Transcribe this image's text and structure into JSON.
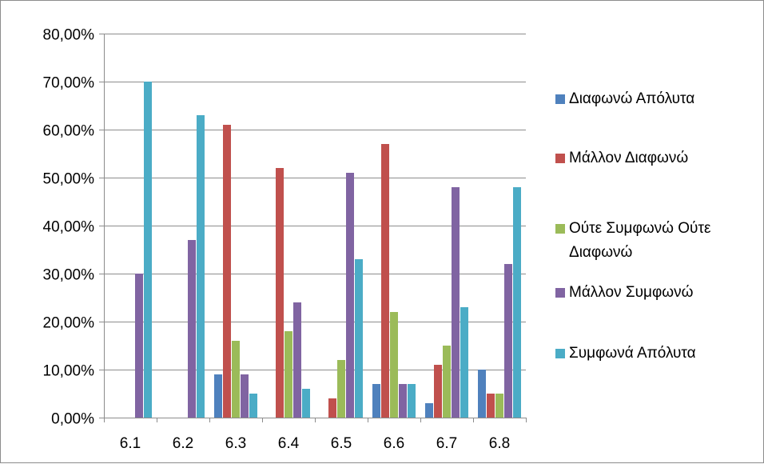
{
  "chart_data": {
    "type": "bar",
    "categories": [
      "6.1",
      "6.2",
      "6.3",
      "6.4",
      "6.5",
      "6.6",
      "6.7",
      "6.8"
    ],
    "series": [
      {
        "name": "Διαφωνώ Απόλυτα",
        "color": "#4f81bd",
        "values": [
          0,
          0,
          9,
          0,
          0,
          7,
          3,
          10
        ]
      },
      {
        "name": "Μάλλον Διαφωνώ",
        "color": "#c0504d",
        "values": [
          0,
          0,
          61,
          52,
          4,
          57,
          11,
          5
        ]
      },
      {
        "name": "Ούτε Συμφωνώ Ούτε Διαφωνώ",
        "color": "#9bbb59",
        "values": [
          0,
          0,
          16,
          18,
          12,
          22,
          15,
          5
        ]
      },
      {
        "name": "Μάλλον Συμφωνώ",
        "color": "#8064a2",
        "values": [
          30,
          37,
          9,
          24,
          51,
          7,
          48,
          32
        ]
      },
      {
        "name": "Συμφωνά Απόλυτα",
        "color": "#4bacc6",
        "values": [
          70,
          63,
          5,
          6,
          33,
          7,
          23,
          48
        ]
      }
    ],
    "y_tick_labels": [
      "0,00%",
      "10,00%",
      "20,00%",
      "30,00%",
      "40,00%",
      "50,00%",
      "60,00%",
      "70,00%",
      "80,00%"
    ],
    "ylim": [
      0,
      80
    ],
    "ylabel": "",
    "xlabel": "",
    "grid": true,
    "legend_position": "right"
  }
}
